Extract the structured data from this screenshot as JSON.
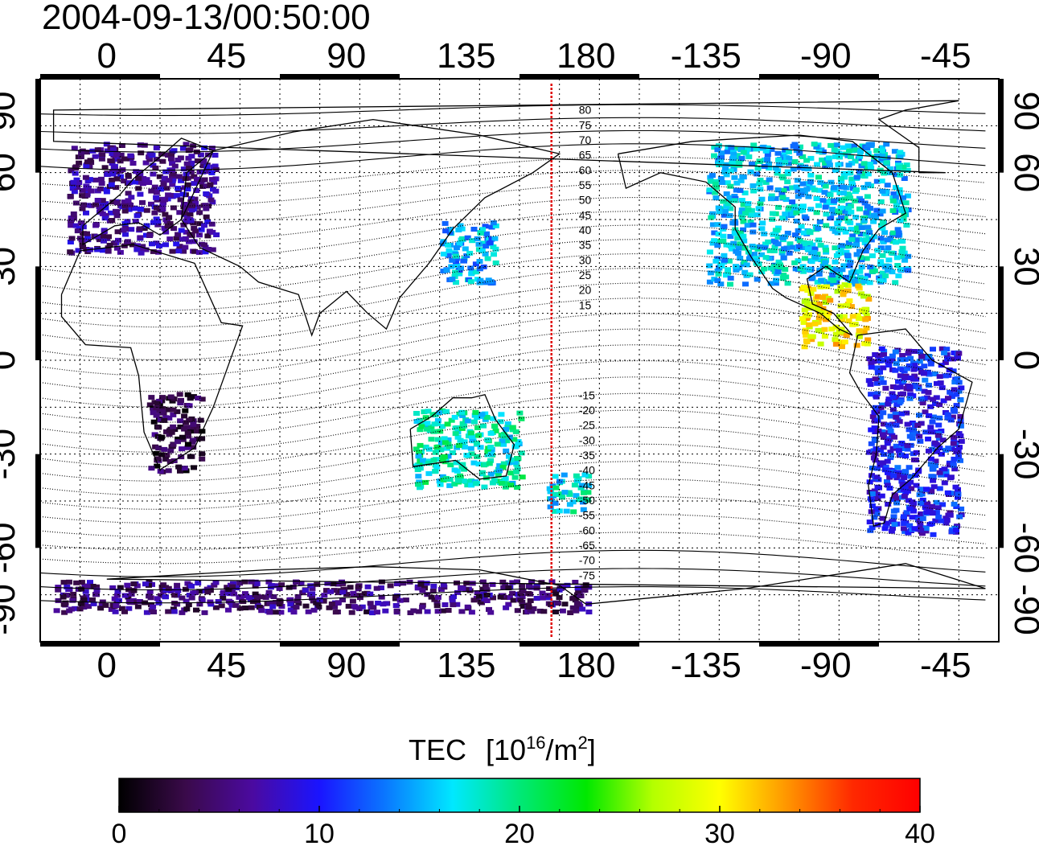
{
  "title": "2004-09-13/00:50:00",
  "map": {
    "lon_tick_labels": [
      "0",
      "45",
      "90",
      "135",
      "180",
      "-135",
      "-90",
      "-45"
    ],
    "lat_tick_labels": [
      "90",
      "60",
      "30",
      "0",
      "-30",
      "-60",
      "-90"
    ],
    "grid_lines": "dotted",
    "terminator_longitude": 167,
    "terminator_color": "#e00000",
    "contour_labels": [
      "80",
      "75",
      "70",
      "65",
      "60",
      "55",
      "50",
      "45",
      "40",
      "35",
      "30",
      "25",
      "20",
      "15",
      "-15",
      "-20",
      "-25",
      "-30",
      "-35",
      "-40",
      "-45",
      "-50",
      "-55",
      "-60",
      "-65",
      "-70",
      "-75"
    ]
  },
  "colorbar": {
    "title": "TEC",
    "unit_prefix": "[10",
    "unit_exp": "16",
    "unit_mid": "/m",
    "unit_exp2": "2",
    "unit_suffix": "]",
    "min": 0,
    "max": 40,
    "tick_labels": [
      "0",
      "10",
      "20",
      "30",
      "40"
    ],
    "colors": [
      "#000000",
      "#3a0a4a",
      "#4b0aa0",
      "#1a14ff",
      "#0a78ff",
      "#00e8ff",
      "#00e878",
      "#00e800",
      "#b4ff00",
      "#ffff00",
      "#ff9600",
      "#ff2800",
      "#ff0000"
    ]
  },
  "chart_data": {
    "type": "heatmap",
    "title": "2004-09-13/00:50:00",
    "xlabel": "",
    "ylabel": "",
    "x_ticks": [
      0,
      45,
      90,
      135,
      180,
      -135,
      -90,
      -45
    ],
    "y_ticks": [
      90,
      60,
      30,
      0,
      -30,
      -60,
      -90
    ],
    "value_label": "TEC [10^16/m^2]",
    "value_range": [
      0,
      40
    ],
    "regions": [
      {
        "name": "Europe",
        "lon": [
          -15,
          40
        ],
        "lat": [
          35,
          70
        ],
        "tec": 6
      },
      {
        "name": "North America",
        "lon": [
          -135,
          -60
        ],
        "lat": [
          25,
          70
        ],
        "tec": 16
      },
      {
        "name": "Japan",
        "lon": [
          125,
          145
        ],
        "lat": [
          25,
          45
        ],
        "tec": 15
      },
      {
        "name": "Australia",
        "lon": [
          115,
          155
        ],
        "lat": [
          -40,
          -15
        ],
        "tec": 18
      },
      {
        "name": "New Zealand",
        "lon": [
          165,
          180
        ],
        "lat": [
          -48,
          -35
        ],
        "tec": 17
      },
      {
        "name": "Central America",
        "lon": [
          -100,
          -75
        ],
        "lat": [
          5,
          25
        ],
        "tec": 30
      },
      {
        "name": "South America",
        "lon": [
          -75,
          -40
        ],
        "lat": [
          -55,
          5
        ],
        "tec": 10
      },
      {
        "name": "Southern Africa",
        "lon": [
          15,
          35
        ],
        "lat": [
          -35,
          -10
        ],
        "tec": 3
      },
      {
        "name": "Antarctica",
        "lon": [
          -20,
          180
        ],
        "lat": [
          -80,
          -70
        ],
        "tec": 5
      }
    ]
  }
}
